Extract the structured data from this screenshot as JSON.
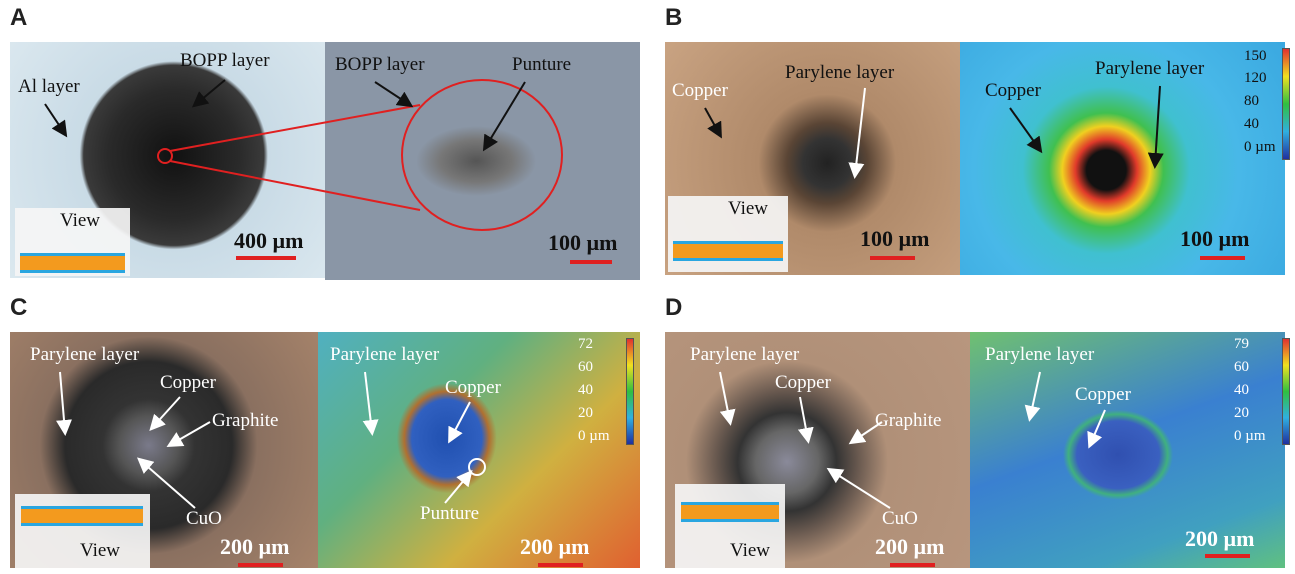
{
  "panels": [
    {
      "label": "A",
      "left": {
        "annotations": [
          "Al layer",
          "BOPP layer"
        ],
        "view": "View",
        "scale": "400 µm"
      },
      "right": {
        "annotations": [
          "BOPP layer",
          "Punture"
        ],
        "scale": "100 µm"
      }
    },
    {
      "label": "B",
      "left": {
        "annotations": [
          "Copper",
          "Parylene layer"
        ],
        "view": "View",
        "scale": "100 µm"
      },
      "right": {
        "annotations": [
          "Copper",
          "Parylene layer"
        ],
        "scale": "100 µm",
        "colorbar": [
          "150",
          "120",
          "80",
          "40",
          "0 µm"
        ]
      }
    },
    {
      "label": "C",
      "left": {
        "annotations": [
          "Parylene layer",
          "Copper",
          "Graphite",
          "CuO"
        ],
        "view": "View",
        "scale": "200 µm"
      },
      "right": {
        "annotations": [
          "Parylene layer",
          "Copper",
          "Punture"
        ],
        "scale": "200 µm",
        "colorbar": [
          "72",
          "60",
          "40",
          "20",
          "0 µm"
        ]
      }
    },
    {
      "label": "D",
      "left": {
        "annotations": [
          "Parylene layer",
          "Copper",
          "Graphite",
          "CuO"
        ],
        "view": "View",
        "scale": "200 µm"
      },
      "right": {
        "annotations": [
          "Parylene layer",
          "Copper"
        ],
        "scale": "200 µm",
        "colorbar": [
          "79",
          "60",
          "40",
          "20",
          "0 µm"
        ]
      }
    }
  ]
}
